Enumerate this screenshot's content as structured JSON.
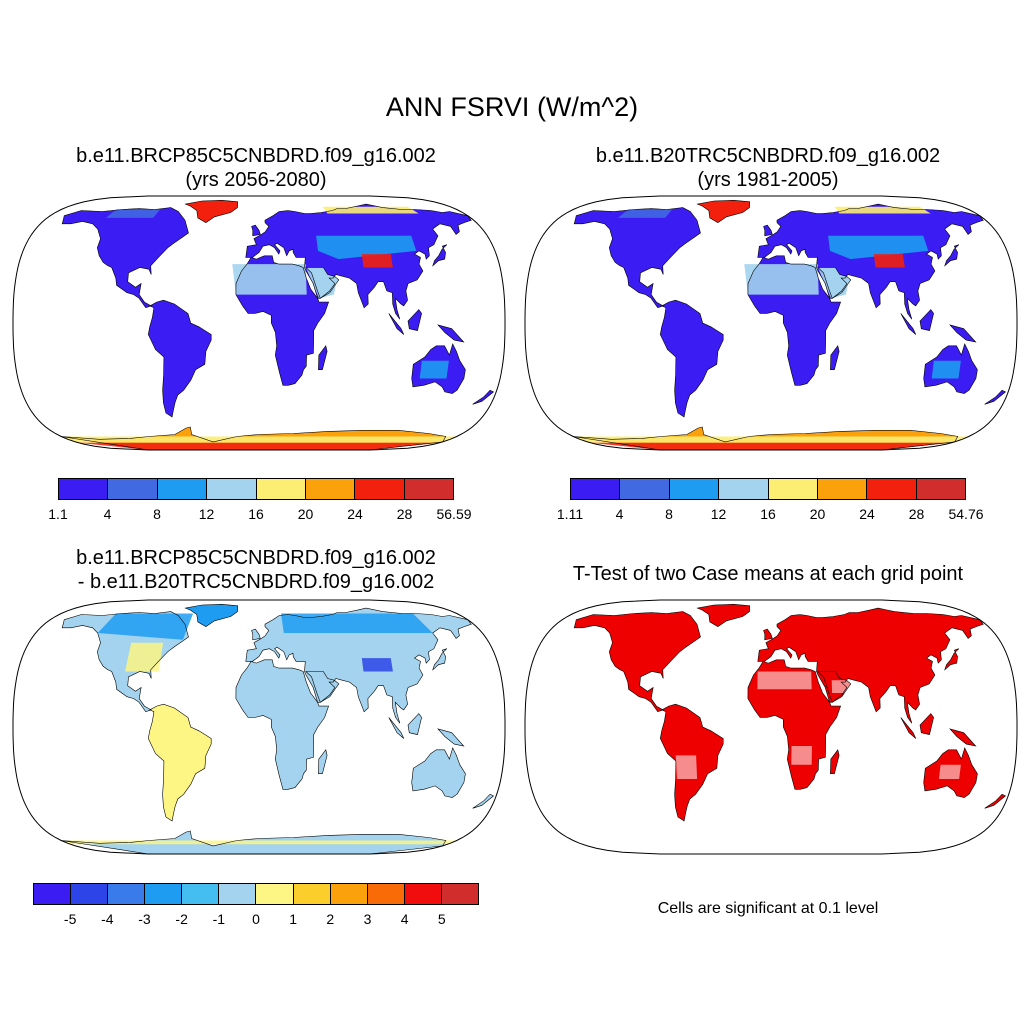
{
  "title": "ANN FSRVI (W/m^2)",
  "panels": {
    "top_left": {
      "case": "b.e11.BRCP85C5CNBDRD.f09_g16.002",
      "years": "(yrs 2056-2080)",
      "colorbar": {
        "colors": [
          "#3b1cf2",
          "#4169e1",
          "#1e9cf2",
          "#a3d3ee",
          "#fced73",
          "#fba10c",
          "#f2200d",
          "#d22d2d"
        ],
        "labels": [
          "1.1",
          "4",
          "8",
          "12",
          "16",
          "20",
          "24",
          "28",
          "56.59"
        ]
      }
    },
    "top_right": {
      "case": "b.e11.B20TRC5CNBDRD.f09_g16.002",
      "years": "(yrs 1981-2005)",
      "colorbar": {
        "colors": [
          "#3b1cf2",
          "#4169e1",
          "#1e9cf2",
          "#a3d3ee",
          "#fced73",
          "#fba10c",
          "#f2200d",
          "#d22d2d"
        ],
        "labels": [
          "1.11",
          "4",
          "8",
          "12",
          "16",
          "20",
          "24",
          "28",
          "54.76"
        ]
      }
    },
    "bottom_left": {
      "line1": "b.e11.BRCP85C5CNBDRD.f09_g16.002",
      "line2": "- b.e11.B20TRC5CNBDRD.f09_g16.002",
      "colorbar": {
        "colors": [
          "#3b1cf2",
          "#2d44e8",
          "#3a7bec",
          "#1e9cf2",
          "#44bdf0",
          "#a3d3ee",
          "#fdf584",
          "#fcce2b",
          "#fba10c",
          "#f96b06",
          "#f20d0d",
          "#d22d2d"
        ],
        "labels": [
          "-5",
          "-4",
          "-3",
          "-2",
          "-1",
          "0",
          "1",
          "2",
          "3",
          "4",
          "5"
        ]
      }
    },
    "bottom_right": {
      "title": "T-Test of two Case means at each grid point",
      "note": "Cells are significant at 0.1 level"
    }
  }
}
